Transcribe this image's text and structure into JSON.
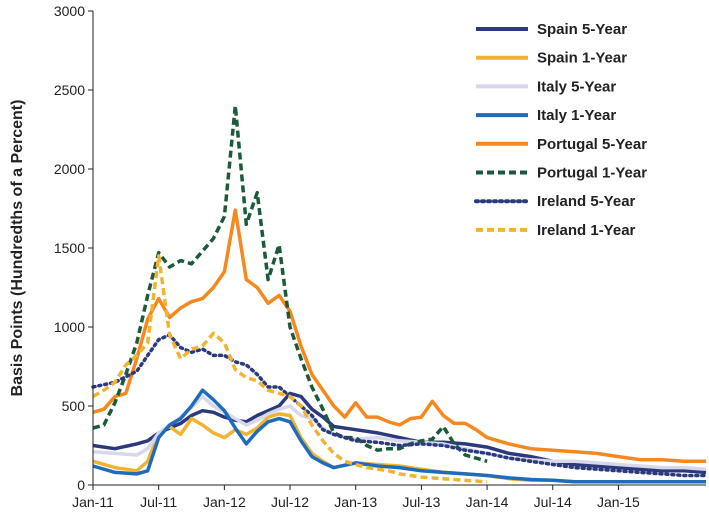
{
  "chart_data": {
    "type": "line",
    "title": "",
    "xlabel": "",
    "ylabel": "Basis Points (Hundredths of a Percent)",
    "ylim": [
      0,
      3000
    ],
    "yticks": [
      0,
      500,
      1000,
      1500,
      2000,
      2500,
      3000
    ],
    "xlim": [
      0,
      56
    ],
    "xticks": [
      {
        "x": 0,
        "label": "Jan-11"
      },
      {
        "x": 6,
        "label": "Jul-11"
      },
      {
        "x": 12,
        "label": "Jan-12"
      },
      {
        "x": 18,
        "label": "Jul-12"
      },
      {
        "x": 24,
        "label": "Jan-13"
      },
      {
        "x": 30,
        "label": "Jul-13"
      },
      {
        "x": 36,
        "label": "Jan-14"
      },
      {
        "x": 42,
        "label": "Jul-14"
      },
      {
        "x": 48,
        "label": "Jan-15"
      }
    ],
    "x_unit": "months since Jan-11",
    "grid": false,
    "legend_position": "top-right",
    "series": [
      {
        "name": "Spain 5-Year",
        "color": "#2b3a7c",
        "dash": "solid",
        "width": 3.5,
        "x": [
          0,
          2,
          4,
          5,
          6,
          7,
          8,
          9,
          10,
          11,
          12,
          13,
          14,
          15,
          16,
          17,
          18,
          19,
          20,
          21,
          22,
          24,
          26,
          28,
          30,
          32,
          34,
          36,
          38,
          40,
          42,
          44,
          46,
          48,
          50,
          52,
          54,
          56
        ],
        "y": [
          250,
          230,
          260,
          280,
          330,
          360,
          390,
          440,
          470,
          460,
          430,
          410,
          400,
          440,
          470,
          500,
          580,
          560,
          480,
          430,
          370,
          350,
          330,
          300,
          270,
          270,
          260,
          240,
          200,
          180,
          150,
          130,
          120,
          110,
          100,
          90,
          90,
          80
        ]
      },
      {
        "name": "Spain 1-Year",
        "color": "#f0b432",
        "dash": "solid",
        "width": 3.5,
        "x": [
          0,
          2,
          4,
          5,
          6,
          7,
          8,
          9,
          10,
          11,
          12,
          13,
          14,
          15,
          16,
          17,
          18,
          19,
          20,
          21,
          22,
          24,
          26,
          28,
          30,
          32,
          34,
          36,
          38,
          40,
          42,
          44,
          46,
          48,
          50,
          52,
          54,
          56
        ],
        "y": [
          150,
          110,
          90,
          150,
          330,
          370,
          320,
          420,
          380,
          330,
          300,
          350,
          320,
          360,
          430,
          450,
          440,
          300,
          200,
          150,
          110,
          140,
          130,
          120,
          100,
          80,
          70,
          60,
          40,
          30,
          30,
          20,
          20,
          20,
          20,
          20,
          20,
          20
        ]
      },
      {
        "name": "Italy 5-Year",
        "color": "#d8d8ec",
        "dash": "solid",
        "width": 3.5,
        "x": [
          0,
          2,
          4,
          5,
          6,
          7,
          8,
          9,
          10,
          11,
          12,
          13,
          14,
          15,
          16,
          17,
          18,
          19,
          20,
          21,
          22,
          24,
          26,
          28,
          30,
          32,
          34,
          36,
          38,
          40,
          42,
          44,
          46,
          48,
          50,
          52,
          54,
          56
        ],
        "y": [
          210,
          200,
          190,
          230,
          330,
          380,
          430,
          490,
          560,
          500,
          460,
          420,
          380,
          410,
          450,
          480,
          500,
          440,
          420,
          360,
          320,
          290,
          300,
          280,
          270,
          260,
          230,
          200,
          170,
          160,
          150,
          150,
          140,
          130,
          120,
          110,
          110,
          100
        ]
      },
      {
        "name": "Italy 1-Year",
        "color": "#1f6cbd",
        "dash": "solid",
        "width": 3.5,
        "x": [
          0,
          2,
          4,
          5,
          6,
          7,
          8,
          9,
          10,
          11,
          12,
          13,
          14,
          15,
          16,
          17,
          18,
          19,
          20,
          21,
          22,
          24,
          26,
          28,
          30,
          32,
          34,
          36,
          38,
          40,
          42,
          44,
          46,
          48,
          50,
          52,
          54,
          56
        ],
        "y": [
          120,
          80,
          70,
          90,
          300,
          380,
          420,
          500,
          600,
          540,
          470,
          360,
          260,
          340,
          400,
          420,
          400,
          280,
          180,
          140,
          110,
          140,
          120,
          110,
          90,
          80,
          70,
          60,
          45,
          35,
          30,
          20,
          20,
          20,
          20,
          20,
          20,
          20
        ]
      },
      {
        "name": "Portugal 5-Year",
        "color": "#f5891f",
        "dash": "solid",
        "width": 3.5,
        "x": [
          0,
          1,
          2,
          3,
          4,
          5,
          6,
          7,
          8,
          9,
          10,
          11,
          12,
          13,
          14,
          15,
          16,
          17,
          18,
          19,
          20,
          21,
          22,
          23,
          24,
          25,
          26,
          27,
          28,
          29,
          30,
          31,
          32,
          33,
          34,
          35,
          36,
          38,
          40,
          42,
          44,
          46,
          48,
          50,
          52,
          54,
          56
        ],
        "y": [
          460,
          480,
          560,
          580,
          800,
          1050,
          1180,
          1060,
          1120,
          1160,
          1180,
          1250,
          1350,
          1740,
          1300,
          1250,
          1150,
          1200,
          1100,
          880,
          700,
          600,
          500,
          430,
          520,
          430,
          430,
          400,
          380,
          420,
          430,
          530,
          440,
          390,
          390,
          350,
          300,
          260,
          230,
          220,
          210,
          200,
          180,
          160,
          160,
          150,
          150
        ]
      },
      {
        "name": "Portugal 1-Year",
        "color": "#1c5a3a",
        "dash": "dashed",
        "width": 3.5,
        "x": [
          0,
          1,
          2,
          3,
          4,
          5,
          6,
          7,
          8,
          9,
          10,
          11,
          12,
          13,
          14,
          15,
          16,
          17,
          18,
          19,
          20,
          21,
          22,
          23,
          24,
          25,
          26,
          27,
          28,
          29,
          30,
          31,
          32,
          33,
          34,
          35,
          36
        ],
        "y": [
          360,
          380,
          520,
          700,
          900,
          1200,
          1470,
          1380,
          1420,
          1400,
          1480,
          1560,
          1700,
          2400,
          1650,
          1850,
          1300,
          1520,
          1000,
          800,
          620,
          480,
          330,
          300,
          300,
          250,
          220,
          230,
          230,
          260,
          280,
          290,
          370,
          260,
          190,
          170,
          150
        ]
      },
      {
        "name": "Ireland 5-Year",
        "color": "#2b3a7c",
        "dash": "dotted",
        "width": 3.5,
        "x": [
          0,
          2,
          4,
          5,
          6,
          7,
          8,
          9,
          10,
          11,
          12,
          13,
          14,
          15,
          16,
          17,
          18,
          19,
          20,
          21,
          22,
          23,
          24,
          26,
          28,
          30,
          32,
          34,
          36,
          38,
          40,
          42,
          44,
          46,
          48,
          50,
          52,
          54,
          56
        ],
        "y": [
          620,
          650,
          720,
          820,
          920,
          950,
          870,
          840,
          860,
          820,
          820,
          780,
          760,
          700,
          620,
          620,
          560,
          500,
          440,
          350,
          320,
          300,
          280,
          270,
          250,
          260,
          250,
          220,
          200,
          170,
          150,
          130,
          110,
          100,
          90,
          80,
          70,
          60,
          60
        ]
      },
      {
        "name": "Ireland 1-Year",
        "color": "#f0b432",
        "dash": "dashed",
        "width": 3.5,
        "x": [
          0,
          1,
          2,
          3,
          4,
          5,
          6,
          7,
          8,
          9,
          10,
          11,
          12,
          13,
          14,
          15,
          16,
          17,
          18,
          19,
          20,
          21,
          22,
          23,
          24,
          25,
          26,
          27,
          28,
          29,
          30,
          32,
          34,
          36
        ],
        "y": [
          560,
          600,
          650,
          760,
          820,
          900,
          1450,
          950,
          800,
          860,
          880,
          960,
          900,
          730,
          680,
          660,
          600,
          580,
          560,
          500,
          380,
          280,
          200,
          150,
          130,
          110,
          100,
          90,
          70,
          60,
          50,
          40,
          30,
          20
        ]
      }
    ]
  }
}
